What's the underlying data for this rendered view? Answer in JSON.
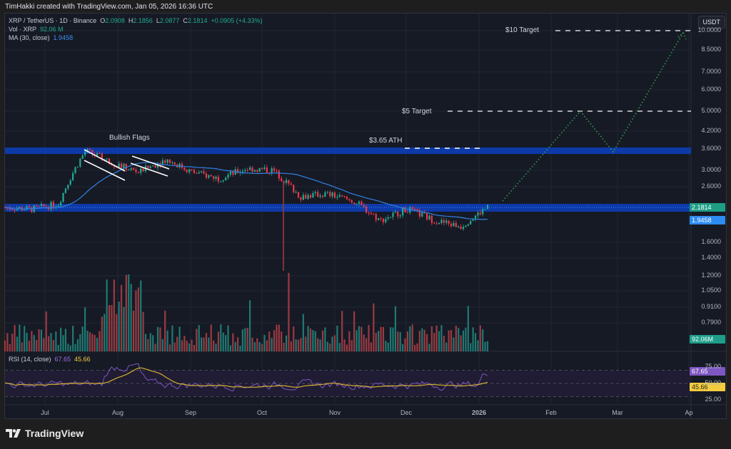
{
  "credit": "TimHakki created with TradingView.com, Jan 05, 2026 16:36 UTC",
  "legend": {
    "symbol": "XRP / TetherUS · 1D · Binance",
    "o_label": "O",
    "o": "2.0908",
    "h_label": "H",
    "h": "2.1856",
    "l_label": "L",
    "l": "2.0877",
    "c_label": "C",
    "c": "2.1814",
    "change": "+0.0905 (+4.33%)",
    "vol_label": "Vol · XRP",
    "vol": "92.06 M",
    "ma_label": "MA (30, close)",
    "ma": "1.9458",
    "rsi_label": "RSI (14, close)",
    "rsi": "67.65",
    "rsi_ma": "45.66"
  },
  "currency_button": "USDT",
  "annotations": {
    "bullish_flags": "Bullish Flags",
    "ath": "$3.65 ATH",
    "target5": "$5 Target",
    "target10": "$10 Target"
  },
  "price_tags": {
    "last": "2.1814",
    "ma": "1.9458",
    "volume": "92.06M",
    "rsi": "67.65",
    "rsi_ma": "45.66"
  },
  "colors": {
    "up": "#22ab94",
    "down": "#f23645",
    "ma": "#2f7bd6",
    "zone": "#0d3aa8",
    "rsi": "#7e57c2",
    "rsi_ma": "#d4b030",
    "projection": "#2e9e4a"
  },
  "footer_logo": "TradingView",
  "chart_data": [
    {
      "type": "candlestick",
      "title": "XRP / TetherUS · 1D · Binance",
      "scale": "log",
      "y_ticks": [
        "10.0000",
        "8.5000",
        "7.0000",
        "6.0000",
        "5.0000",
        "4.2000",
        "3.6000",
        "3.0000",
        "2.6000",
        "1.6000",
        "1.4000",
        "1.2000",
        "1.0500",
        "0.9100",
        "0.7900"
      ],
      "x_ticks": [
        "Jul",
        "Aug",
        "Sep",
        "Oct",
        "Nov",
        "Dec",
        "2026",
        "Feb",
        "Mar",
        "Ap"
      ],
      "ohlc_last": {
        "open": 2.0908,
        "high": 2.1856,
        "low": 2.0877,
        "close": 2.1814,
        "change": 0.0905,
        "change_pct": 4.33
      },
      "approx_close_path": [
        {
          "x": "Jun 20",
          "y": 2.18
        },
        {
          "x": "Jun 28",
          "y": 2.15
        },
        {
          "x": "Jul 10",
          "y": 2.25
        },
        {
          "x": "Jul 18",
          "y": 3.55
        },
        {
          "x": "Jul 25",
          "y": 3.2
        },
        {
          "x": "Aug 2",
          "y": 2.95
        },
        {
          "x": "Aug 8",
          "y": 3.3
        },
        {
          "x": "Aug 20",
          "y": 2.95
        },
        {
          "x": "Sep 1",
          "y": 2.8
        },
        {
          "x": "Sep 15",
          "y": 3.05
        },
        {
          "x": "Oct 3",
          "y": 3.0
        },
        {
          "x": "Oct 10",
          "y": 2.4
        },
        {
          "x": "Oct 20",
          "y": 2.45
        },
        {
          "x": "Nov 5",
          "y": 2.3
        },
        {
          "x": "Nov 21",
          "y": 1.95
        },
        {
          "x": "Dec 1",
          "y": 2.15
        },
        {
          "x": "Dec 15",
          "y": 1.95
        },
        {
          "x": "Dec 31",
          "y": 1.85
        },
        {
          "x": "Jan 5",
          "y": 2.18
        }
      ],
      "indicators": [
        {
          "name": "MA (30, close)",
          "last": 1.9458
        }
      ],
      "horizontal_zones": [
        {
          "label": "$3.65 ATH resistance",
          "y": 3.6
        },
        {
          "label": "support",
          "y": 2.18
        }
      ],
      "horizontal_lines": [
        {
          "label": "$10 Target",
          "y": 10.0
        },
        {
          "label": "$5 Target",
          "y": 5.0
        },
        {
          "label": "$3.65 ATH",
          "y": 3.65
        }
      ],
      "projection_path": [
        {
          "x": "Jan 7",
          "y": 2.3
        },
        {
          "x": "Feb 13",
          "y": 5.0
        },
        {
          "x": "Feb 26",
          "y": 3.6
        },
        {
          "x": "Apr 1",
          "y": 10.0
        }
      ],
      "annotations": [
        "Bullish Flags"
      ]
    },
    {
      "type": "bar",
      "title": "Vol · XRP",
      "last_value": "92.06M"
    },
    {
      "type": "line",
      "title": "RSI (14, close)",
      "series": [
        {
          "name": "RSI",
          "last": 67.65
        },
        {
          "name": "RSI MA",
          "last": 45.66
        }
      ],
      "y_ticks": [
        "75.00",
        "50.00",
        "25.00"
      ],
      "bands": [
        70,
        50,
        30
      ]
    }
  ]
}
